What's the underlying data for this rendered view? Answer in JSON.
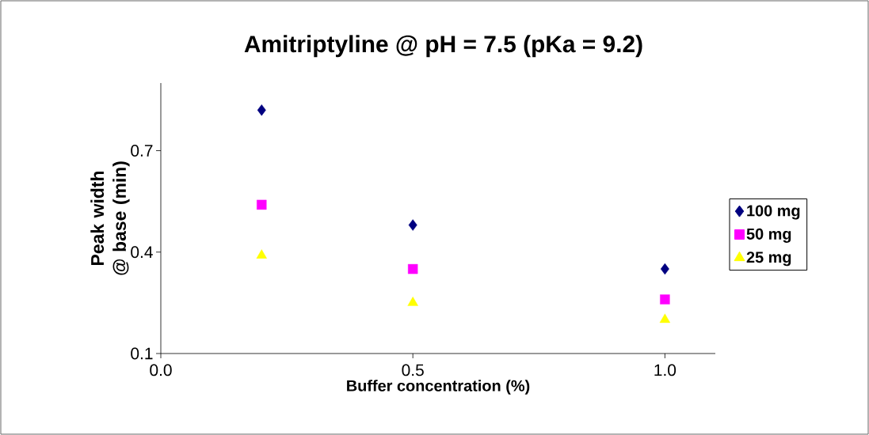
{
  "chart_data": {
    "type": "scatter",
    "title": "Amitriptyline @ pH = 7.5 (pKa = 9.2)",
    "xlabel": "Buffer concentration (%)",
    "ylabel": "Peak width @ base (min)",
    "x": [
      0.2,
      0.5,
      1.0
    ],
    "series": [
      {
        "name": "100 mg",
        "color": "#000080",
        "marker": "diamond",
        "values": [
          0.82,
          0.48,
          0.35
        ]
      },
      {
        "name": "50 mg",
        "color": "#ff00ff",
        "marker": "square",
        "values": [
          0.54,
          0.35,
          0.26
        ]
      },
      {
        "name": "25 mg",
        "color": "#ffff00",
        "marker": "triangle",
        "values": [
          0.39,
          0.25,
          0.2
        ]
      }
    ],
    "xlim": [
      0,
      1.1
    ],
    "ylim": [
      0.1,
      0.9
    ],
    "xticks": [
      {
        "value": 0,
        "label": "0.0"
      },
      0.5,
      {
        "value": 1.0,
        "label": "1.0"
      }
    ],
    "yticks": [
      0.1,
      0.4,
      0.7
    ],
    "grid": false,
    "legend": "right"
  }
}
